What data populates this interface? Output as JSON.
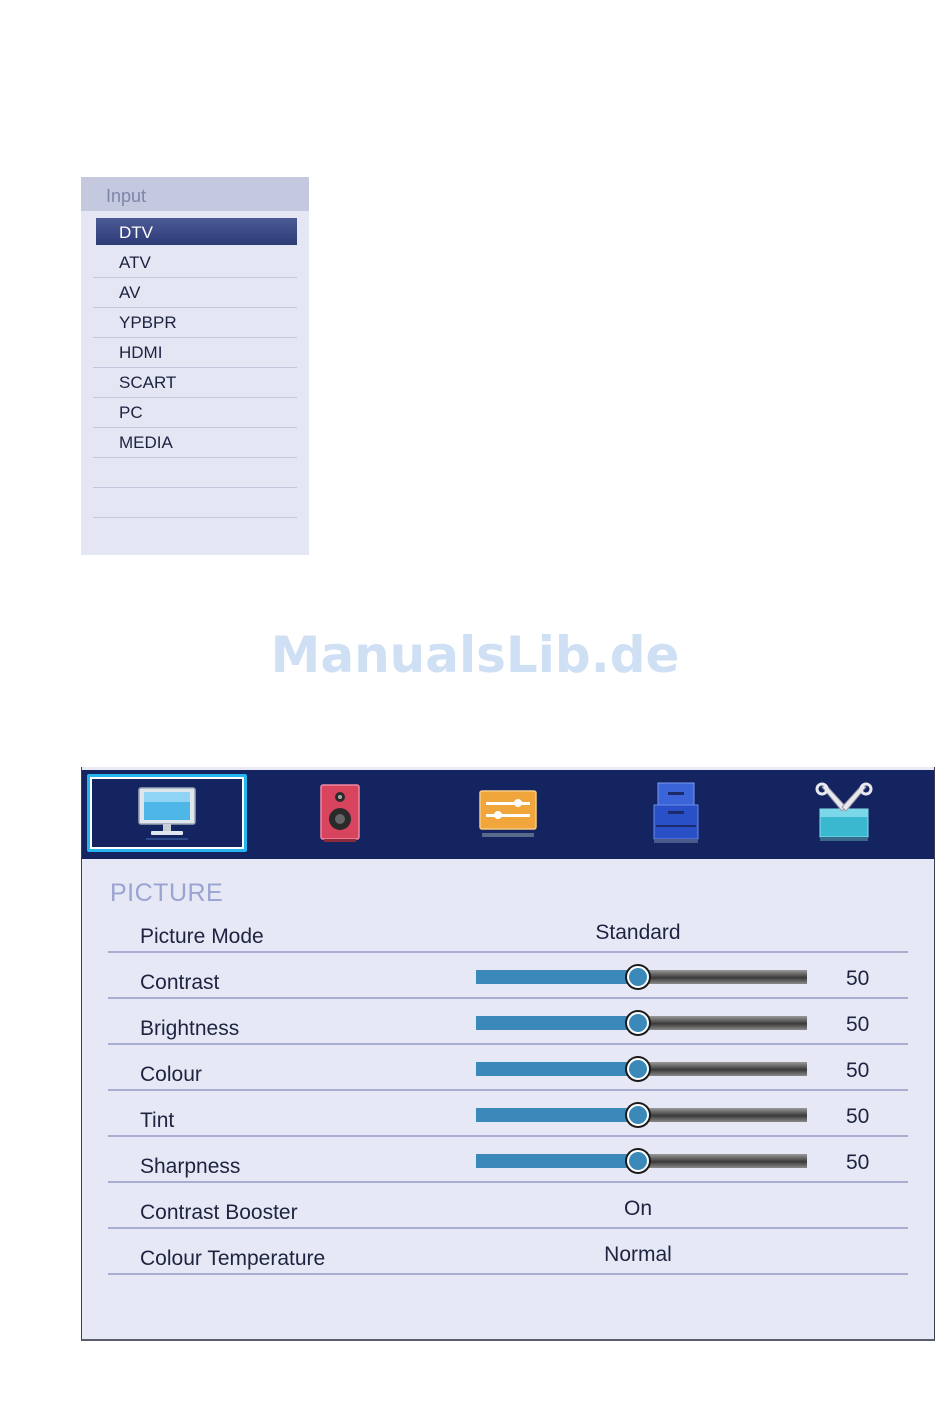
{
  "input_menu": {
    "title": "Input",
    "items": [
      {
        "label": "DTV",
        "selected": true
      },
      {
        "label": "ATV",
        "selected": false
      },
      {
        "label": "AV",
        "selected": false
      },
      {
        "label": "YPBPR",
        "selected": false
      },
      {
        "label": "HDMI",
        "selected": false
      },
      {
        "label": "SCART",
        "selected": false
      },
      {
        "label": "PC",
        "selected": false
      },
      {
        "label": "MEDIA",
        "selected": false
      },
      {
        "label": "",
        "selected": false
      },
      {
        "label": "",
        "selected": false
      }
    ]
  },
  "watermark": "ManualsLib.de",
  "settings": {
    "tabs": [
      {
        "icon": "tv-icon",
        "active": true
      },
      {
        "icon": "speaker-icon",
        "active": false
      },
      {
        "icon": "sliders-icon",
        "active": false
      },
      {
        "icon": "cabinet-icon",
        "active": false
      },
      {
        "icon": "tools-icon",
        "active": false
      }
    ],
    "section_title": "PICTURE",
    "rows": [
      {
        "label": "Picture Mode",
        "value": "Standard"
      },
      {
        "label": "Contrast",
        "slider": 50,
        "max": 100
      },
      {
        "label": "Brightness",
        "slider": 50,
        "max": 100
      },
      {
        "label": "Colour",
        "slider": 50,
        "max": 100
      },
      {
        "label": "Tint",
        "slider": 50,
        "max": 100
      },
      {
        "label": "Sharpness",
        "slider": 50,
        "max": 100
      },
      {
        "label": "Contrast Booster",
        "value": "On"
      },
      {
        "label": "Colour Temperature",
        "value": "Normal"
      }
    ],
    "colors": {
      "tab_bar": "#142460",
      "active_tab_border": "#26b5ee",
      "slider_fill": "#3a89b8"
    }
  }
}
